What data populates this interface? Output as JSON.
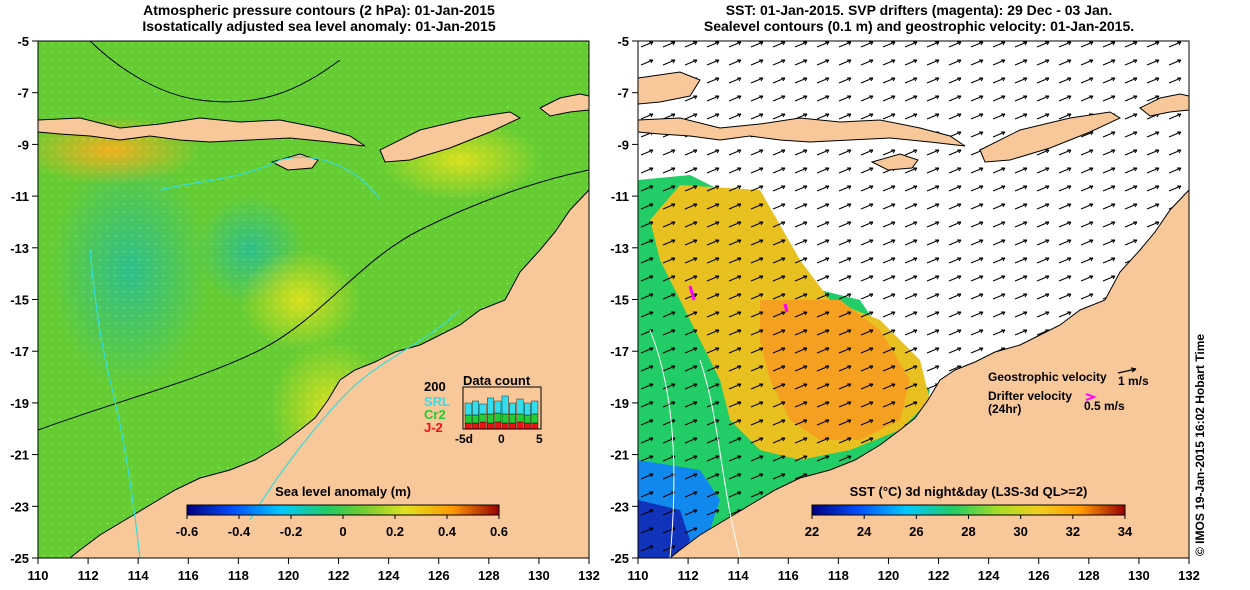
{
  "left_panel": {
    "title_line1": "Atmospheric pressure contours (2 hPa): 01-Jan-2015",
    "title_line2": "Isostatically adjusted sea level anomaly: 01-Jan-2015",
    "colorbar_title": "Sea level anomaly (m)",
    "colorbar_ticks": [
      "-0.6",
      "-0.4",
      "-0.2",
      "0",
      "0.2",
      "0.4",
      "0.6"
    ],
    "legend": {
      "title": "Data count",
      "max_label": "200",
      "series": [
        {
          "name": "SRL",
          "color": "#33ddee"
        },
        {
          "name": "Cr2",
          "color": "#22cc33"
        },
        {
          "name": "J-2",
          "color": "#ee1111"
        }
      ],
      "axis_ticks": [
        "-5d",
        "0",
        "5"
      ]
    }
  },
  "right_panel": {
    "title_line1": "SST: 01-Jan-2015. SVP drifters (magenta): 29 Dec - 03 Jan.",
    "title_line2": "Sealevel contours (0.1 m) and geostrophic velocity: 01-Jan-2015.",
    "colorbar_title": "SST (°C) 3d night&day (L3S-3d QL>=2)",
    "colorbar_ticks": [
      "22",
      "24",
      "26",
      "28",
      "30",
      "32",
      "34"
    ],
    "geo_label": "Geostrophic velocity",
    "geo_scale": "1 m/s",
    "drifter_label1": "Drifter velocity",
    "drifter_label2": "(24hr)",
    "drifter_scale": "0.5 m/s",
    "drifter_color": "#ff00ff"
  },
  "x_ticks": [
    "110",
    "112",
    "114",
    "116",
    "118",
    "120",
    "122",
    "124",
    "126",
    "128",
    "130",
    "132"
  ],
  "y_ticks": [
    "-5",
    "-7",
    "-9",
    "-11",
    "-13",
    "-15",
    "-17",
    "-19",
    "-21",
    "-23",
    "-25"
  ],
  "credit": "© IMOS 19-Jan-2015 16:02 Hobart Time",
  "colors": {
    "land": "#f8c89a",
    "ocean_green": "#66cc33",
    "coast": "#000000"
  }
}
